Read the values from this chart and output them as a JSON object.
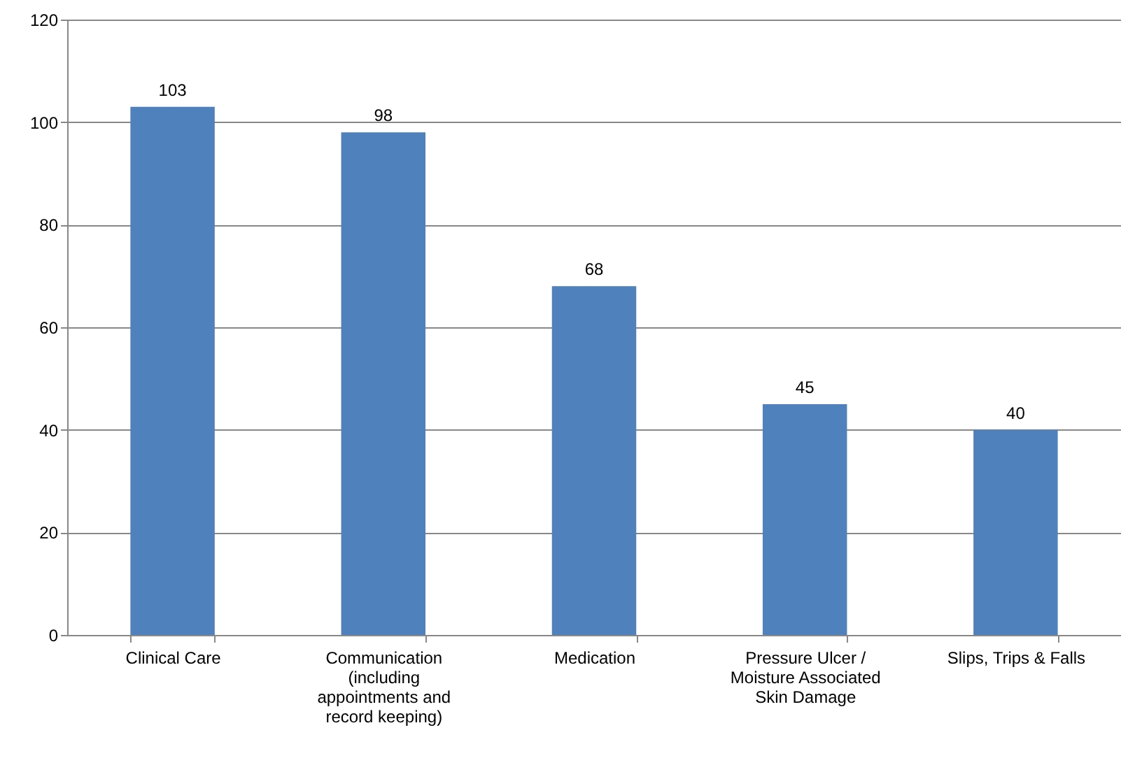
{
  "chart_data": {
    "type": "bar",
    "categories": [
      "Clinical Care",
      "Communication (including appointments and record keeping)",
      "Medication",
      "Pressure Ulcer / Moisture Associated Skin Damage",
      "Slips, Trips & Falls"
    ],
    "values": [
      103,
      98,
      68,
      45,
      40
    ],
    "color": "#4f81bd",
    "ylim": [
      0,
      120
    ],
    "yticks": [
      0,
      20,
      40,
      60,
      80,
      100,
      120
    ],
    "grid": "y",
    "data_labels": true
  }
}
